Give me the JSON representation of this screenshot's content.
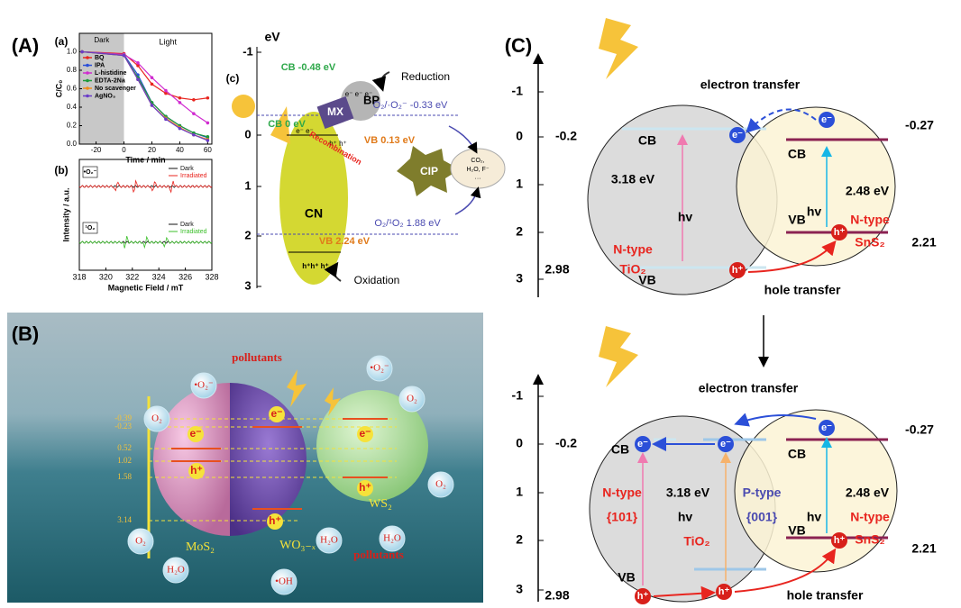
{
  "panel_labels": {
    "A": "(A)",
    "B": "(B)",
    "C": "(C)"
  },
  "chart_data": [
    {
      "type": "line",
      "label": "(a)",
      "x": [
        -30,
        0,
        10,
        20,
        30,
        40,
        50,
        60
      ],
      "xlim": [
        -32,
        63
      ],
      "xticks": [
        -20,
        0,
        20,
        40,
        60
      ],
      "ylim": [
        0,
        1.2
      ],
      "yticks": [
        {
          "value": 0,
          "label": "0.0"
        },
        {
          "value": 0.2,
          "label": "0.2"
        },
        {
          "value": 0.4,
          "label": "0.4"
        },
        {
          "value": 0.6,
          "label": "0.6"
        },
        {
          "value": 0.8,
          "label": "0.8"
        },
        {
          "value": 1,
          "label": "1.0"
        }
      ],
      "xlabel": "Time / min",
      "ylabel": "C/C₀",
      "dark_region": [
        -32,
        0
      ],
      "annotations": [
        "Dark",
        "Light"
      ],
      "series": [
        {
          "name": "BQ",
          "color": "#e8251f",
          "values": [
            1,
            0.98,
            0.85,
            0.65,
            0.55,
            0.5,
            0.48,
            0.5
          ]
        },
        {
          "name": "IPA",
          "color": "#2b4fd8",
          "values": [
            1,
            0.97,
            0.75,
            0.45,
            0.3,
            0.2,
            0.12,
            0.07
          ]
        },
        {
          "name": "L-histidine",
          "color": "#d02bd0",
          "values": [
            1,
            0.97,
            0.88,
            0.72,
            0.58,
            0.45,
            0.33,
            0.23
          ]
        },
        {
          "name": "EDTA-2Na",
          "color": "#1e9a3a",
          "values": [
            1,
            0.96,
            0.72,
            0.45,
            0.3,
            0.2,
            0.12,
            0.08
          ]
        },
        {
          "name": "No scavenger",
          "color": "#f08c1a",
          "values": [
            1,
            0.96,
            0.7,
            0.42,
            0.28,
            0.18,
            0.1,
            0.05
          ]
        },
        {
          "name": "AgNO₃",
          "color": "#6a3cc8",
          "values": [
            1,
            0.96,
            0.7,
            0.42,
            0.27,
            0.17,
            0.1,
            0.04
          ]
        }
      ]
    },
    {
      "type": "spectrum",
      "label": "(b)",
      "xlim": [
        318,
        328
      ],
      "xticks": [
        318,
        320,
        322,
        324,
        326,
        328
      ],
      "xlabel": "Magnetic Field / mT",
      "ylabel": "Intensity / a.u.",
      "panels": [
        {
          "label": "•O₂⁻",
          "series": [
            {
              "name": "Dark",
              "color": "#111111"
            },
            {
              "name": "Irradiated",
              "color": "#e8251f"
            }
          ]
        },
        {
          "label": "¹O₂",
          "series": [
            {
              "name": "Dark",
              "color": "#111111"
            },
            {
              "name": "Irradiated",
              "color": "#3bbf2a"
            }
          ]
        }
      ]
    }
  ],
  "panel_c": {
    "label": "(c)",
    "axis_label": "eV",
    "ticks": [
      -1,
      0,
      1,
      2,
      3
    ],
    "cb_bp": "CB -0.48 eV",
    "cb_mx": "CB 0 eV",
    "vb_mx": "VB 0.13 eV",
    "vb_cn": "VB 2.24 eV",
    "redox_1": "O₂/·O₂⁻ -0.33 eV",
    "redox_2": "O₂/¹O₂ 1.88 eV",
    "reduction": "Reduction",
    "oxidation": "Oxidation",
    "cn": "CN",
    "mx": "MX",
    "bp": "BP",
    "cip": "CIP",
    "recombination": "Recombination",
    "products": [
      "CO₂,",
      "H₂O, F⁻",
      "···"
    ],
    "electrons_bp": "e⁻ e⁻ e⁻",
    "electrons_cn": "e⁻ e⁻",
    "holes_mx": "h⁺ h⁺",
    "holes_cn": "h⁺h⁺ h⁺"
  },
  "panel_B": {
    "pollutants": [
      "pollutants",
      "pollutants"
    ],
    "superoxide": [
      "•O₂⁻",
      "•O₂⁻"
    ],
    "o2": [
      "O₂",
      "O₂",
      "O₂",
      "O₂"
    ],
    "h2o": [
      "H₂O",
      "H₂O",
      "H₂O"
    ],
    "hydroxyl": "•OH",
    "mos2": "MoS₂",
    "wo3": "WO₃₋ₓ",
    "ws2": "WS₂",
    "levels": [
      -0.39,
      -0.23,
      0.52,
      1.02,
      1.58,
      3.14
    ],
    "electrons": [
      "e⁻",
      "e⁻",
      "e⁻"
    ],
    "holes": [
      "h⁺",
      "h⁺",
      "h⁺"
    ]
  },
  "panel_C": {
    "top": {
      "axis_ticks": [
        -1,
        0,
        1,
        2,
        3
      ],
      "electron_transfer": "electron transfer",
      "hole_transfer": "hole transfer",
      "tio2_cb": -0.2,
      "tio2_vb": 2.98,
      "sns2_cb": -0.27,
      "sns2_vb": 2.21,
      "cb": [
        "CB",
        "CB"
      ],
      "vb": [
        "VB",
        "VB"
      ],
      "tio2_gap": "3.18 eV",
      "sns2_gap": "2.48 eV",
      "hv": [
        "hv",
        "hv"
      ],
      "tio2_type": "N-type",
      "tio2_name": "TiO₂",
      "sns2_type": "N-type",
      "sns2_name": "SnS₂",
      "electrons": [
        "e⁻",
        "e⁻"
      ],
      "holes": [
        "h⁺",
        "h⁺"
      ]
    },
    "bottom": {
      "axis_ticks": [
        -1,
        0,
        1,
        2,
        3
      ],
      "electron_transfer": "electron transfer",
      "hole_transfer": "hole transfer",
      "tio2_cb": -0.2,
      "tio2_vb": 2.98,
      "sns2_cb": -0.27,
      "sns2_vb": 2.21,
      "cb": [
        "CB",
        "CB"
      ],
      "vb": [
        "VB",
        "VB"
      ],
      "tio2_gap": "3.18 eV",
      "sns2_gap": "2.48 eV",
      "hv": [
        "hv",
        "hv"
      ],
      "n_type": "N-type",
      "facet_101": "{101}",
      "p_type": "P-type",
      "facet_001": "{001}",
      "tio2_name": "TiO₂",
      "sns2_type": "N-type",
      "sns2_name": "SnS₂",
      "electrons": [
        "e⁻",
        "e⁻",
        "e⁻"
      ],
      "holes": [
        "h⁺",
        "h⁺",
        "h⁺"
      ]
    }
  }
}
